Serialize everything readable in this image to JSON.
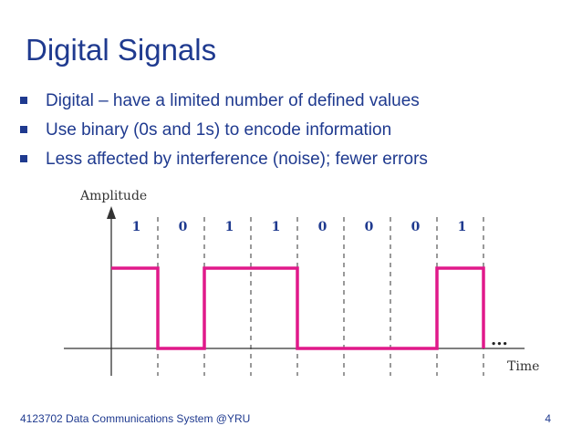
{
  "slide": {
    "title": "Digital Signals",
    "bullets": [
      "Digital – have a limited number of defined values",
      "Use binary (0s and 1s) to encode information",
      "Less affected by interference (noise); fewer errors"
    ],
    "footer": "4123702 Data Communications System @YRU",
    "page_number": "4"
  },
  "diagram": {
    "y_axis_label": "Amplitude",
    "x_axis_label": "Time",
    "continuation": "...",
    "bits": [
      "1",
      "0",
      "1",
      "1",
      "0",
      "0",
      "0",
      "1"
    ],
    "signal_color": "#e0198a",
    "bit_label_color": "#1f3a8f"
  }
}
